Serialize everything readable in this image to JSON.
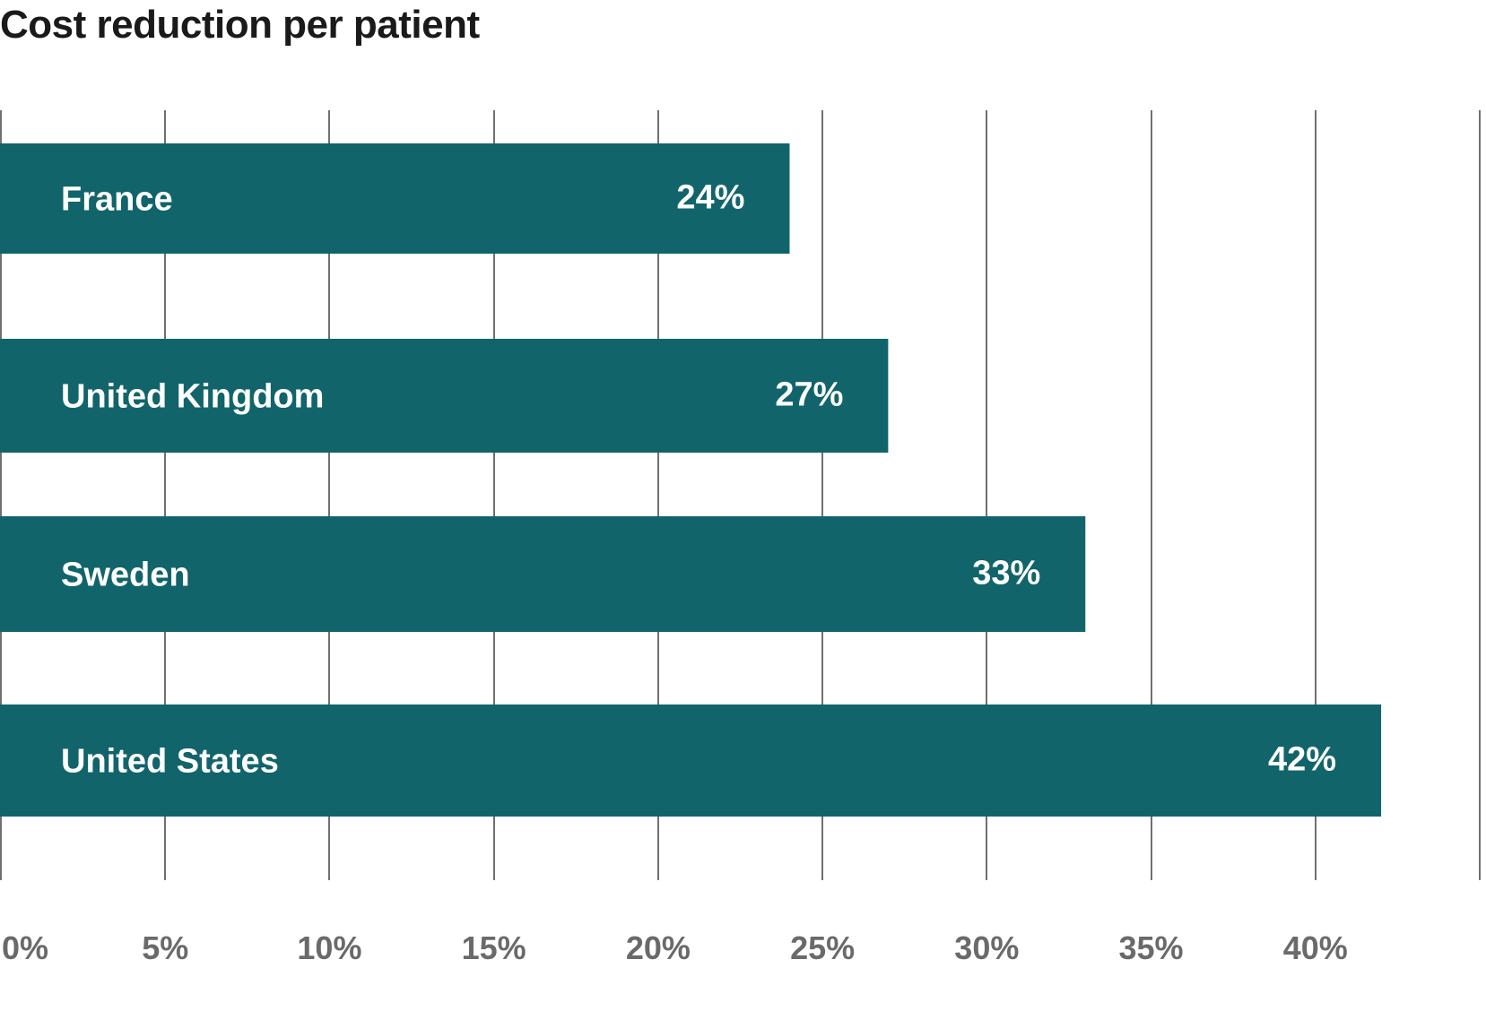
{
  "chart_data": {
    "type": "bar",
    "orientation": "horizontal",
    "title": "Cost reduction per patient",
    "xlabel": "",
    "ylabel": "",
    "categories": [
      "France",
      "United Kingdom",
      "Sweden",
      "United States"
    ],
    "values": [
      24,
      27,
      33,
      42
    ],
    "value_labels": [
      "24%",
      "27%",
      "33%",
      "42%"
    ],
    "xlim": [
      0,
      45
    ],
    "x_ticks": [
      0,
      5,
      10,
      15,
      20,
      25,
      30,
      35,
      40
    ],
    "x_tick_labels": [
      "0%",
      "5%",
      "10%",
      "15%",
      "20%",
      "25%",
      "30%",
      "35%",
      "40%"
    ],
    "grid": true,
    "bar_color": "#12646B",
    "legend": "none"
  }
}
